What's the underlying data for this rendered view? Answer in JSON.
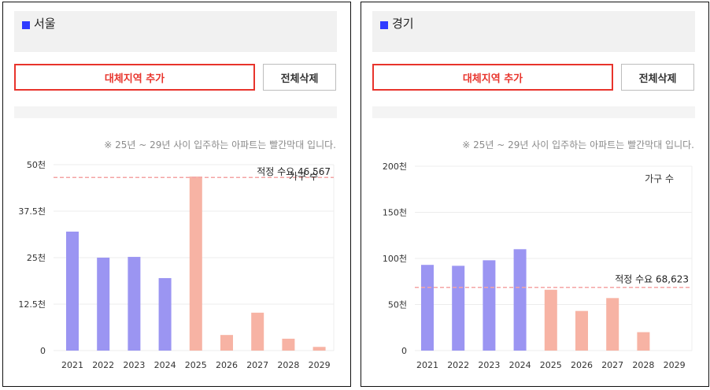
{
  "panels": [
    {
      "region": "서울",
      "add_button": "대체지역 추가",
      "delete_button": "전체삭제",
      "note": "※ 25년 ~ 29년 사이 입주하는 아파트는 빨간막대 입니다.",
      "legend_label": "가구 수",
      "demand_label": "적정 수요 46,567",
      "colors": {
        "past": "#9b95f2",
        "future": "#f7b3a4",
        "demand_line": "#f4a4a4"
      },
      "chart_data": {
        "type": "bar",
        "categories": [
          "2021",
          "2022",
          "2023",
          "2024",
          "2025",
          "2026",
          "2027",
          "2028",
          "2029"
        ],
        "values": [
          32000,
          25000,
          25200,
          19500,
          46800,
          4200,
          10200,
          3200,
          1000
        ],
        "highlight_from": "2025",
        "ylim": [
          0,
          50000
        ],
        "yticks": [
          0,
          12500,
          25000,
          37500,
          50000
        ],
        "ytick_labels": [
          "0",
          "12.5천",
          "25천",
          "37.5천",
          "50천"
        ],
        "reference_line": 46567,
        "series": [
          {
            "name": "가구 수"
          }
        ]
      }
    },
    {
      "region": "경기",
      "add_button": "대체지역 추가",
      "delete_button": "전체삭제",
      "note": "※ 25년 ~ 29년 사이 입주하는 아파트는 빨간막대 입니다.",
      "legend_label": "가구 수",
      "demand_label": "적정 수요 68,623",
      "colors": {
        "past": "#9b95f2",
        "future": "#f7b3a4",
        "demand_line": "#f4a4a4"
      },
      "chart_data": {
        "type": "bar",
        "categories": [
          "2021",
          "2022",
          "2023",
          "2024",
          "2025",
          "2026",
          "2027",
          "2028",
          "2029"
        ],
        "values": [
          93000,
          92000,
          98000,
          110000,
          66000,
          43000,
          57000,
          20000,
          0
        ],
        "highlight_from": "2025",
        "ylim": [
          0,
          200000
        ],
        "yticks": [
          0,
          50000,
          100000,
          150000,
          200000
        ],
        "ytick_labels": [
          "0",
          "50천",
          "100천",
          "150천",
          "200천"
        ],
        "reference_line": 68623,
        "series": [
          {
            "name": "가구 수"
          }
        ]
      }
    }
  ]
}
